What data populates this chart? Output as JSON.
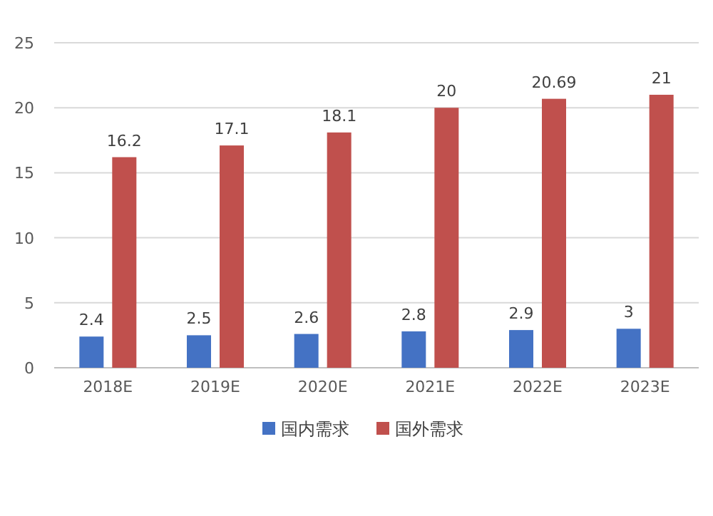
{
  "chart_data": {
    "type": "bar",
    "categories": [
      "2018E",
      "2019E",
      "2020E",
      "2021E",
      "2022E",
      "2023E"
    ],
    "series": [
      {
        "name": "国内需求",
        "color": "#4472c4",
        "values": [
          2.4,
          2.5,
          2.6,
          2.8,
          2.9,
          3
        ]
      },
      {
        "name": "国外需求",
        "color": "#c0504d",
        "values": [
          16.2,
          17.1,
          18.1,
          20,
          20.69,
          21
        ]
      }
    ],
    "ylim": [
      0,
      25
    ],
    "yticks": [
      0,
      5,
      10,
      15,
      20,
      25
    ],
    "grid": "y",
    "legend": "bottom",
    "data_labels": true
  }
}
